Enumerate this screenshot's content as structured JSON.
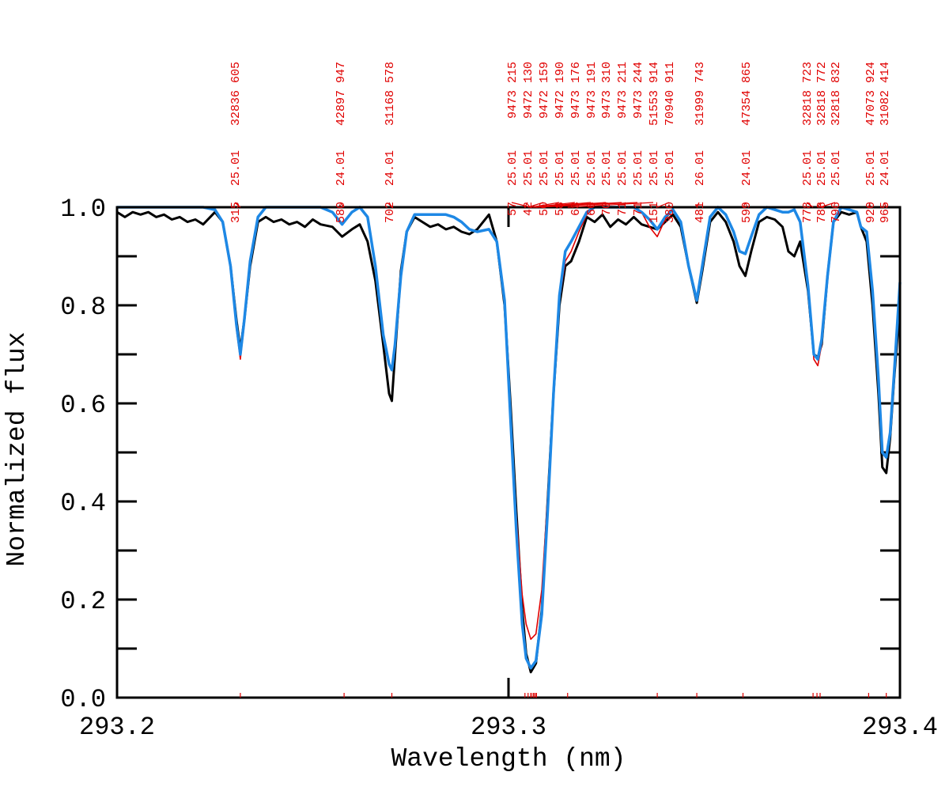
{
  "chart_data": {
    "type": "line",
    "xlabel": "Wavelength (nm)",
    "ylabel": "Normalized flux",
    "xlim": [
      293.2,
      293.4
    ],
    "ylim": [
      0,
      1.0
    ],
    "xticks": [
      293.2,
      293.3,
      293.4
    ],
    "yticks": [
      {
        "value": 0,
        "label": "0.0"
      },
      0.2,
      0.4,
      0.6,
      0.8,
      {
        "value": 1,
        "label": "1.0"
      }
    ],
    "yticks_minor": [
      0.1,
      0.3,
      0.5,
      0.7,
      0.9
    ],
    "x": [
      293.2,
      293.202,
      293.204,
      293.206,
      293.208,
      293.21,
      293.212,
      293.214,
      293.216,
      293.218,
      293.22,
      293.222,
      293.225,
      293.227,
      293.229,
      293.2305,
      293.2315,
      293.2325,
      293.234,
      293.236,
      293.238,
      293.24,
      293.242,
      293.244,
      293.246,
      293.248,
      293.25,
      293.252,
      293.255,
      293.2575,
      293.26,
      293.262,
      293.264,
      293.266,
      293.268,
      293.2695,
      293.2702,
      293.271,
      293.2725,
      293.274,
      293.276,
      293.278,
      293.28,
      293.282,
      293.284,
      293.286,
      293.288,
      293.29,
      293.292,
      293.295,
      293.297,
      293.299,
      293.3005,
      293.302,
      293.3035,
      293.3045,
      293.3057,
      293.307,
      293.3085,
      293.31,
      293.3115,
      293.313,
      293.3145,
      293.316,
      293.318,
      293.32,
      293.322,
      293.324,
      293.326,
      293.328,
      293.33,
      293.332,
      293.334,
      293.336,
      293.338,
      293.34,
      293.342,
      293.344,
      293.346,
      293.3481,
      293.3495,
      293.3515,
      293.3535,
      293.3555,
      293.3575,
      293.359,
      293.3605,
      293.362,
      293.364,
      293.366,
      293.368,
      293.37,
      293.3715,
      293.373,
      293.3745,
      293.3765,
      293.378,
      293.379,
      293.38,
      293.3815,
      293.383,
      293.385,
      293.387,
      293.389,
      293.39,
      293.3915,
      293.393,
      293.3945,
      293.3955,
      293.3965,
      293.3975,
      293.3985,
      293.4
    ],
    "series": [
      {
        "color": "#000000",
        "values": [
          0.99,
          0.98,
          0.99,
          0.985,
          0.99,
          0.98,
          0.985,
          0.975,
          0.98,
          0.97,
          0.975,
          0.965,
          0.99,
          0.97,
          0.88,
          0.77,
          0.71,
          0.77,
          0.88,
          0.97,
          0.98,
          0.97,
          0.975,
          0.965,
          0.97,
          0.96,
          0.975,
          0.965,
          0.96,
          0.94,
          0.955,
          0.965,
          0.93,
          0.85,
          0.72,
          0.62,
          0.605,
          0.7,
          0.87,
          0.95,
          0.98,
          0.97,
          0.96,
          0.965,
          0.955,
          0.96,
          0.95,
          0.945,
          0.955,
          0.985,
          0.93,
          0.8,
          0.6,
          0.38,
          0.18,
          0.09,
          0.052,
          0.07,
          0.18,
          0.4,
          0.62,
          0.8,
          0.88,
          0.89,
          0.93,
          0.98,
          0.97,
          0.985,
          0.96,
          0.975,
          0.965,
          0.98,
          0.965,
          0.96,
          0.955,
          0.97,
          0.985,
          0.96,
          0.88,
          0.805,
          0.87,
          0.97,
          0.99,
          0.97,
          0.93,
          0.88,
          0.86,
          0.91,
          0.97,
          0.98,
          0.975,
          0.96,
          0.91,
          0.9,
          0.93,
          0.83,
          0.7,
          0.694,
          0.72,
          0.86,
          0.97,
          0.99,
          0.985,
          0.99,
          0.96,
          0.93,
          0.8,
          0.62,
          0.47,
          0.458,
          0.53,
          0.65,
          0.8
        ]
      },
      {
        "color": "#e00000",
        "values": [
          1.0,
          1.0,
          1.0,
          1.0,
          1.0,
          1.0,
          1.0,
          1.0,
          1.0,
          1.0,
          1.0,
          1.0,
          0.995,
          0.97,
          0.88,
          0.75,
          0.69,
          0.76,
          0.89,
          0.98,
          1.0,
          1.0,
          1.0,
          1.0,
          1.0,
          1.0,
          1.0,
          1.0,
          0.99,
          0.965,
          0.99,
          1.0,
          0.98,
          0.88,
          0.74,
          0.68,
          0.668,
          0.72,
          0.86,
          0.95,
          0.985,
          0.985,
          0.985,
          0.985,
          0.985,
          0.98,
          0.97,
          0.955,
          0.95,
          0.955,
          0.93,
          0.81,
          0.58,
          0.37,
          0.21,
          0.15,
          0.119,
          0.13,
          0.22,
          0.41,
          0.62,
          0.81,
          0.89,
          0.91,
          0.95,
          0.985,
          1.0,
          1.0,
          1.0,
          1.0,
          1.0,
          1.0,
          0.99,
          0.96,
          0.94,
          0.975,
          0.995,
          0.97,
          0.88,
          0.81,
          0.88,
          0.98,
          1.0,
          0.985,
          0.95,
          0.91,
          0.905,
          0.94,
          0.985,
          1.0,
          0.995,
          0.99,
          0.99,
          0.995,
          0.97,
          0.84,
          0.69,
          0.677,
          0.72,
          0.86,
          0.97,
          1.0,
          0.995,
          0.99,
          0.96,
          0.95,
          0.83,
          0.65,
          0.5,
          0.49,
          0.54,
          0.66,
          0.847
        ]
      },
      {
        "color": "#1e88e5",
        "values": [
          1.0,
          1.0,
          1.0,
          1.0,
          1.0,
          1.0,
          1.0,
          1.0,
          1.0,
          1.0,
          1.0,
          1.0,
          0.995,
          0.97,
          0.88,
          0.76,
          0.7,
          0.77,
          0.89,
          0.98,
          1.0,
          1.0,
          1.0,
          1.0,
          1.0,
          1.0,
          1.0,
          1.0,
          0.99,
          0.965,
          0.99,
          1.0,
          0.98,
          0.88,
          0.74,
          0.68,
          0.668,
          0.72,
          0.86,
          0.95,
          0.985,
          0.985,
          0.985,
          0.985,
          0.985,
          0.98,
          0.97,
          0.955,
          0.95,
          0.955,
          0.93,
          0.81,
          0.57,
          0.34,
          0.15,
          0.08,
          0.06,
          0.075,
          0.17,
          0.38,
          0.62,
          0.82,
          0.91,
          0.93,
          0.96,
          0.99,
          1.0,
          1.0,
          1.0,
          1.0,
          1.0,
          1.0,
          0.99,
          0.975,
          0.955,
          0.98,
          0.995,
          0.97,
          0.88,
          0.81,
          0.88,
          0.98,
          1.0,
          0.985,
          0.95,
          0.91,
          0.905,
          0.94,
          0.985,
          1.0,
          0.995,
          0.99,
          0.99,
          0.995,
          0.97,
          0.84,
          0.7,
          0.69,
          0.73,
          0.86,
          0.97,
          1.0,
          0.995,
          0.99,
          0.96,
          0.95,
          0.83,
          0.65,
          0.5,
          0.49,
          0.54,
          0.66,
          0.847
        ]
      }
    ],
    "line_ids": [
      {
        "wavelength": 293.2315,
        "label": "315",
        "species": "25.01",
        "energy": "32836 605"
      },
      {
        "wavelength": 293.258,
        "label": "580",
        "species": "24.01",
        "energy": "42897 947"
      },
      {
        "wavelength": 293.2702,
        "label": "702",
        "species": "24.01",
        "energy": "31168 578"
      },
      {
        "wavelength": 293.3057,
        "label": "57",
        "species": "25.01",
        "energy": "9473 215"
      },
      {
        "wavelength": 293.3042,
        "label": "42",
        "species": "25.01",
        "energy": "9472 130"
      },
      {
        "wavelength": 293.305,
        "label": "50",
        "species": "25.01",
        "energy": "9472 159"
      },
      {
        "wavelength": 293.3058,
        "label": "58",
        "species": "25.01",
        "energy": "9472 190"
      },
      {
        "wavelength": 293.3063,
        "label": "63",
        "species": "25.01",
        "energy": "9473 176"
      },
      {
        "wavelength": 293.3066,
        "label": "66",
        "species": "25.01",
        "energy": "9473 191"
      },
      {
        "wavelength": 293.307,
        "label": "70",
        "species": "25.01",
        "energy": "9473 310"
      },
      {
        "wavelength": 293.3071,
        "label": "71",
        "species": "25.01",
        "energy": "9473 211"
      },
      {
        "wavelength": 293.3071,
        "label": "71",
        "species": "25.01",
        "energy": "9473 244"
      },
      {
        "wavelength": 293.3151,
        "label": "151",
        "species": "25.01",
        "energy": "51553 914"
      },
      {
        "wavelength": 293.338,
        "label": "380",
        "species": "25.01",
        "energy": "70940 911"
      },
      {
        "wavelength": 293.3481,
        "label": "481",
        "species": "26.01",
        "energy": "31999 743"
      },
      {
        "wavelength": 293.3599,
        "label": "599",
        "species": "24.01",
        "energy": "47354 865"
      },
      {
        "wavelength": 293.3778,
        "label": "778",
        "species": "25.01",
        "energy": "32818 723"
      },
      {
        "wavelength": 293.3788,
        "label": "788",
        "species": "25.01",
        "energy": "32818 772"
      },
      {
        "wavelength": 293.3796,
        "label": "796",
        "species": "25.01",
        "energy": "32818 832"
      },
      {
        "wavelength": 293.392,
        "label": "920",
        "species": "25.01",
        "energy": "47073 924"
      },
      {
        "wavelength": 293.3965,
        "label": "965",
        "species": "24.01",
        "energy": "31082 414"
      }
    ]
  }
}
